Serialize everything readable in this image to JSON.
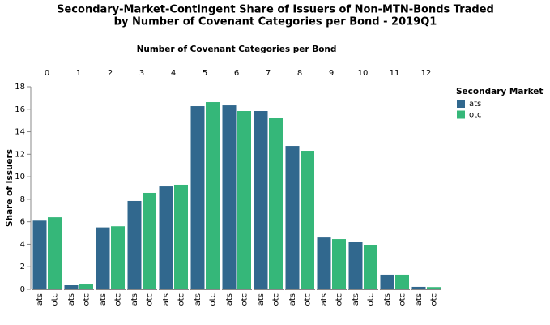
{
  "chart_data": {
    "type": "bar",
    "title": [
      "Secondary-Market-Contingent Share of Issuers of Non-MTN-Bonds Traded",
      "by Number of Covenant Categories per Bond - 2019Q1"
    ],
    "column_axis_label": "Number of Covenant Categories per Bond",
    "y_axis_label": "Share of Issuers",
    "legend_title": "Secondary Market",
    "categories": [
      "0",
      "1",
      "2",
      "3",
      "4",
      "5",
      "6",
      "7",
      "8",
      "9",
      "10",
      "11",
      "12"
    ],
    "series": [
      {
        "name": "ats",
        "color": "#31688e",
        "values": [
          6.1,
          0.36,
          5.5,
          7.85,
          9.14,
          16.27,
          16.34,
          15.84,
          12.74,
          4.6,
          4.18,
          1.3,
          0.22
        ]
      },
      {
        "name": "otc",
        "color": "#35b779",
        "values": [
          6.4,
          0.43,
          5.6,
          8.57,
          9.29,
          16.63,
          15.84,
          15.26,
          12.31,
          4.46,
          3.96,
          1.3,
          0.2
        ]
      }
    ],
    "ylim": [
      0,
      18
    ],
    "yticks": [
      0,
      2,
      4,
      6,
      8,
      10,
      12,
      14,
      16,
      18
    ],
    "grid": false,
    "legend": "right"
  }
}
